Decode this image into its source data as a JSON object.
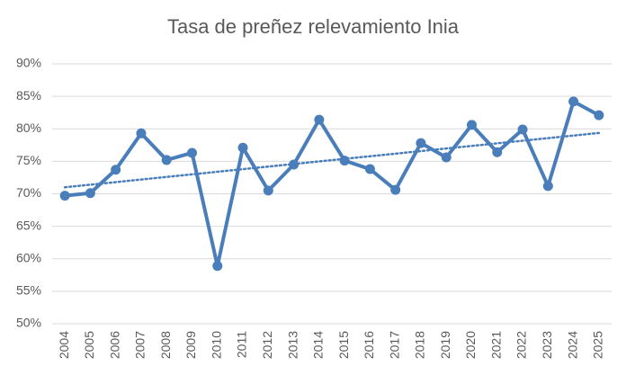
{
  "chart_data": {
    "type": "line",
    "title": "Tasa de preñez relevamiento Inia",
    "categories": [
      "2004",
      "2005",
      "2006",
      "2007",
      "2008",
      "2009",
      "2010",
      "2011",
      "2012",
      "2013",
      "2014",
      "2015",
      "2016",
      "2017",
      "2018",
      "2019",
      "2020",
      "2021",
      "2022",
      "2023",
      "2024",
      "2025"
    ],
    "values": [
      69.7,
      70.1,
      73.7,
      79.3,
      75.2,
      76.3,
      58.9,
      77.1,
      70.5,
      74.5,
      81.4,
      75.1,
      73.8,
      70.6,
      77.8,
      75.6,
      80.6,
      76.4,
      79.9,
      71.2,
      84.2,
      82.1
    ],
    "color": "#4a7ebb",
    "trendline": "linear",
    "ylim": [
      50,
      90
    ],
    "yticks": [
      {
        "value": 50,
        "label": "50%"
      },
      {
        "value": 55,
        "label": "55%"
      },
      {
        "value": 60,
        "label": "60%"
      },
      {
        "value": 65,
        "label": "65%"
      },
      {
        "value": 70,
        "label": "70%"
      },
      {
        "value": 75,
        "label": "75%"
      },
      {
        "value": 80,
        "label": "80%"
      },
      {
        "value": 85,
        "label": "85%"
      },
      {
        "value": 90,
        "label": "90%"
      }
    ],
    "grid": true
  }
}
